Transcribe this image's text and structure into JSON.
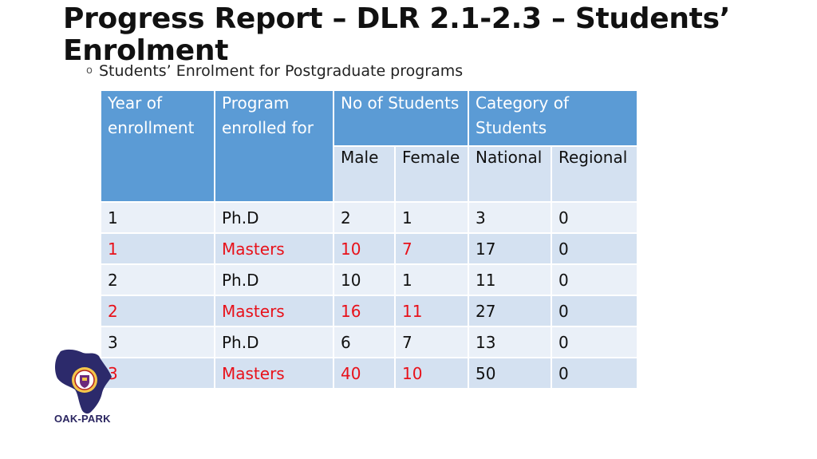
{
  "title": "Progress Report – DLR 2.1-2.3 – Students’ Enrolment",
  "subtitle": "Students’ Enrolment for Postgraduate programs",
  "bullet": "o",
  "table": {
    "headers": {
      "year": "Year of enrollment",
      "program": "Program enrolled  for",
      "no_students": "No of Students",
      "category": "Category of Students",
      "male": "Male",
      "female": "Female",
      "national": "National",
      "regional": "Regional"
    },
    "rows": [
      {
        "year": "1",
        "program": "Ph.D",
        "male": "2",
        "female": "1",
        "national": "3",
        "regional": "0",
        "highlight": false
      },
      {
        "year": "1",
        "program": "Masters",
        "male": "10",
        "female": "7",
        "national": "17",
        "regional": "0",
        "highlight": true
      },
      {
        "year": "2",
        "program": "Ph.D",
        "male": "10",
        "female": "1",
        "national": "11",
        "regional": "0",
        "highlight": false
      },
      {
        "year": "2",
        "program": "Masters",
        "male": "16",
        "female": "11",
        "national": "27",
        "regional": "0",
        "highlight": true
      },
      {
        "year": "3",
        "program": "Ph.D",
        "male": "6",
        "female": "7",
        "national": "13",
        "regional": "0",
        "highlight": false
      },
      {
        "year": "3",
        "program": "Masters",
        "male": "40",
        "female": "10",
        "national": "50",
        "regional": "0",
        "highlight": true
      }
    ]
  },
  "logo": {
    "label": "OAK-PARK",
    "icon": "africa-map-crest-icon"
  },
  "colors": {
    "header": "#5b9bd5",
    "shade": "#d4e1f1",
    "light": "#eaf0f8",
    "highlight_text": "#e8111a"
  }
}
